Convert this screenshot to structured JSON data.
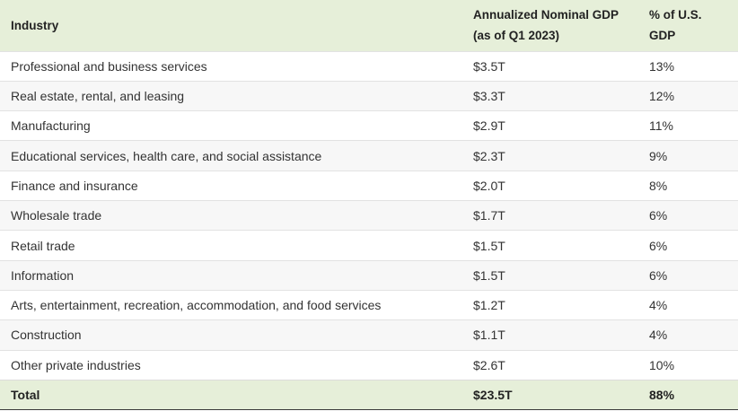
{
  "table": {
    "headers": {
      "industry": "Industry",
      "gdp_line1": "Annualized Nominal GDP",
      "gdp_line2": "(as of Q1 2023)",
      "pct_line1": "% of U.S.",
      "pct_line2": "GDP"
    },
    "rows": [
      {
        "industry": "Professional and business services",
        "gdp": "$3.5T",
        "pct": "13%"
      },
      {
        "industry": "Real estate, rental, and leasing",
        "gdp": "$3.3T",
        "pct": "12%"
      },
      {
        "industry": "Manufacturing",
        "gdp": "$2.9T",
        "pct": "11%"
      },
      {
        "industry": "Educational services, health care, and social assistance",
        "gdp": "$2.3T",
        "pct": "9%"
      },
      {
        "industry": "Finance and insurance",
        "gdp": "$2.0T",
        "pct": "8%"
      },
      {
        "industry": "Wholesale trade",
        "gdp": "$1.7T",
        "pct": "6%"
      },
      {
        "industry": "Retail trade",
        "gdp": "$1.5T",
        "pct": "6%"
      },
      {
        "industry": "Information",
        "gdp": "$1.5T",
        "pct": "6%"
      },
      {
        "industry": "Arts, entertainment, recreation, accommodation, and food services",
        "gdp": "$1.2T",
        "pct": "4%"
      },
      {
        "industry": "Construction",
        "gdp": "$1.1T",
        "pct": "4%"
      },
      {
        "industry": "Other private industries",
        "gdp": "$2.6T",
        "pct": "10%"
      }
    ],
    "total": {
      "industry": "Total",
      "gdp": "$23.5T",
      "pct": "88%"
    }
  },
  "colors": {
    "header_bg": "#e6efd9",
    "stripe_bg": "#f7f7f7",
    "row_divider": "#e2e2e2",
    "text": "#222222"
  }
}
